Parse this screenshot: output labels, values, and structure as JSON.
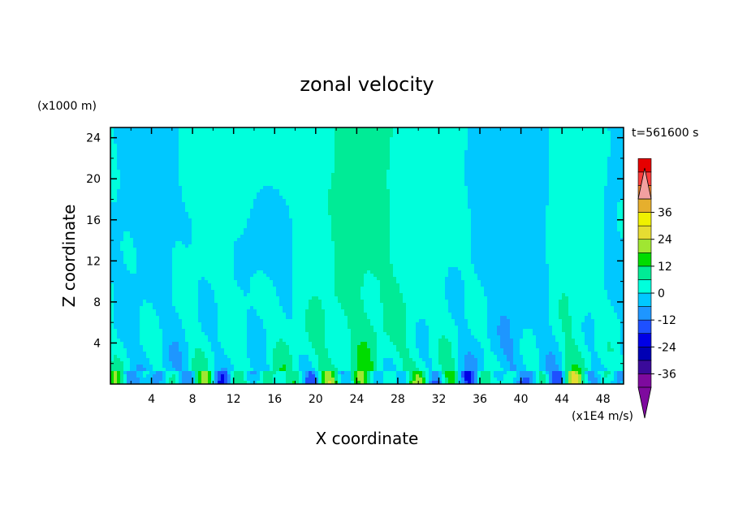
{
  "chart_data": {
    "type": "heatmap",
    "title": "zonal velocity",
    "time_label": "t=561600 s",
    "xlabel": "X coordinate",
    "ylabel": "Z coordinate",
    "x_unit": "(x1E4 m/s)",
    "y_unit": "(x1000 m)",
    "xlim": [
      0,
      50
    ],
    "ylim": [
      0,
      25
    ],
    "x_ticks": [
      "4",
      "8",
      "12",
      "16",
      "20",
      "24",
      "28",
      "32",
      "36",
      "40",
      "44",
      "48"
    ],
    "y_ticks": [
      "4",
      "8",
      "12",
      "16",
      "20",
      "24"
    ],
    "colorbar": {
      "labels": [
        "36",
        "24",
        "12",
        "0",
        "-12",
        "-24",
        "-36"
      ],
      "label_values": [
        36,
        24,
        12,
        0,
        -12,
        -24,
        -36
      ],
      "range": [
        -42,
        42
      ],
      "step": 6,
      "colors": [
        "#7e0a9e",
        "#3a0a9a",
        "#0000b4",
        "#0000e6",
        "#1e50ff",
        "#1e96ff",
        "#00c8ff",
        "#00ffdc",
        "#00eb96",
        "#00dc00",
        "#a0e632",
        "#e6dc32",
        "#f0f000",
        "#e6af2d",
        "#f08228",
        "#fa3c3c",
        "#e60000"
      ],
      "over_color": "#f2a0a0",
      "under_color": "#7e0a9e"
    }
  }
}
